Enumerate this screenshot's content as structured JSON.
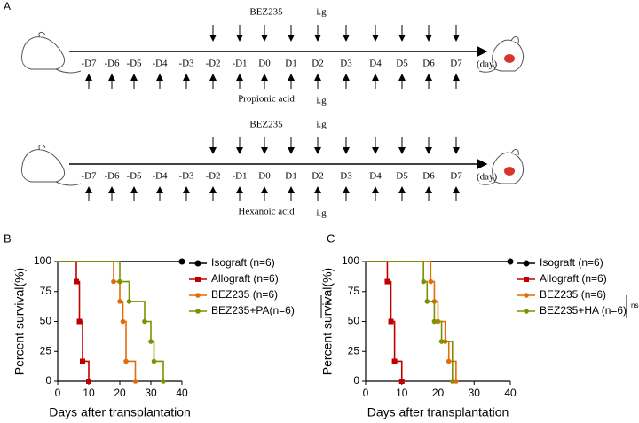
{
  "panels": {
    "a": "A",
    "b": "B",
    "c": "C"
  },
  "timelines": [
    {
      "top_label": "BEZ235",
      "top_route": "i.g",
      "bottom_label": "Propionic acid",
      "bottom_route": "i.g",
      "days": [
        "-D7",
        "-D6",
        "-D5",
        "-D4",
        "-D3",
        "-D2",
        "-D1",
        "D0",
        "D1",
        "D2",
        "D3",
        "D4",
        "D5",
        "D6",
        "D7"
      ],
      "unit": "(day)"
    },
    {
      "top_label": "BEZ235",
      "top_route": "i.g",
      "bottom_label": "Hexanoic acid",
      "bottom_route": "i.g",
      "days": [
        "-D7",
        "-D6",
        "-D5",
        "-D4",
        "-D3",
        "-D2",
        "-D1",
        "D0",
        "D1",
        "D2",
        "D3",
        "D4",
        "D5",
        "D6",
        "D7"
      ],
      "unit": "(day)"
    }
  ],
  "chart_data": [
    {
      "type": "step",
      "x_label": "Days after transplantation",
      "y_label": "Percent survival(%)",
      "xlim": [
        0,
        40
      ],
      "xticks": [
        0,
        10,
        20,
        30,
        40
      ],
      "ylim": [
        0,
        100
      ],
      "yticks": [
        0,
        25,
        50,
        75,
        100
      ],
      "significance": "*",
      "series": [
        {
          "name": "Isograft (n=6)",
          "color": "#000000",
          "marker": "circle",
          "x": [
            0,
            40
          ],
          "values": [
            100,
            100
          ]
        },
        {
          "name": "Allograft (n=6)",
          "color": "#c00000",
          "marker": "square",
          "x": [
            0,
            6,
            7,
            8,
            10
          ],
          "values": [
            100,
            83.3,
            50,
            16.7,
            0
          ]
        },
        {
          "name": "BEZ235 (n=6)",
          "color": "#e36c0a",
          "marker": "circle",
          "x": [
            0,
            18,
            20,
            21,
            22,
            25
          ],
          "values": [
            100,
            83.3,
            66.7,
            50,
            16.7,
            0
          ]
        },
        {
          "name": "BEZ235+PA(n=6)",
          "color": "#7f9000",
          "marker": "circle",
          "x": [
            0,
            20,
            23,
            28,
            30,
            31,
            34
          ],
          "values": [
            100,
            83.3,
            66.7,
            50,
            33.3,
            16.7,
            0
          ]
        }
      ]
    },
    {
      "type": "step",
      "x_label": "Days after transplantation",
      "y_label": "Percent survival(%)",
      "xlim": [
        0,
        40
      ],
      "xticks": [
        0,
        10,
        20,
        30,
        40
      ],
      "ylim": [
        0,
        100
      ],
      "yticks": [
        0,
        25,
        50,
        75,
        100
      ],
      "significance": "ns",
      "series": [
        {
          "name": "Isograft (n=6)",
          "color": "#000000",
          "marker": "circle",
          "x": [
            0,
            40
          ],
          "values": [
            100,
            100
          ]
        },
        {
          "name": "Allograft (n=6)",
          "color": "#c00000",
          "marker": "square",
          "x": [
            0,
            6,
            7,
            8,
            10
          ],
          "values": [
            100,
            83.3,
            50,
            16.7,
            0
          ]
        },
        {
          "name": "BEZ235 (n=6)",
          "color": "#e36c0a",
          "marker": "circle",
          "x": [
            0,
            18,
            19,
            20,
            22,
            23,
            25
          ],
          "values": [
            100,
            83.3,
            66.7,
            50,
            33.3,
            16.7,
            0
          ]
        },
        {
          "name": "BEZ235+HA (n=6)",
          "color": "#7f9000",
          "marker": "circle",
          "x": [
            0,
            16,
            17,
            19,
            21,
            24
          ],
          "values": [
            100,
            83.3,
            66.7,
            50,
            33.3,
            0
          ]
        }
      ]
    }
  ]
}
